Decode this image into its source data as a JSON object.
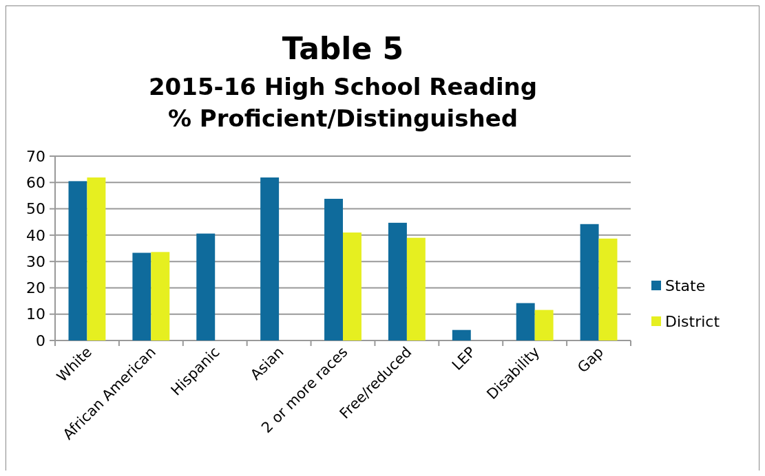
{
  "chart_data": {
    "type": "bar",
    "title": "Table 5",
    "subtitle": "2015-16 High School Reading\n% Proficient/Distinguished",
    "categories": [
      "White",
      "African American",
      "Hispanic",
      "Asian",
      "2 or more races",
      "Free/reduced",
      "LEP",
      "Disability",
      "Gap"
    ],
    "series": [
      {
        "name": "State",
        "color": "#0f6b9c",
        "values": [
          60.5,
          33.3,
          40.6,
          61.9,
          53.8,
          44.7,
          4.0,
          14.2,
          44.2
        ]
      },
      {
        "name": "District",
        "color": "#e6ef20",
        "values": [
          61.9,
          33.6,
          null,
          null,
          41.0,
          39.0,
          null,
          11.6,
          38.7
        ]
      }
    ],
    "ylim": [
      0,
      70
    ],
    "yticks": [
      0,
      10,
      20,
      30,
      40,
      50,
      60,
      70
    ],
    "grid": "y",
    "legend": "right"
  }
}
